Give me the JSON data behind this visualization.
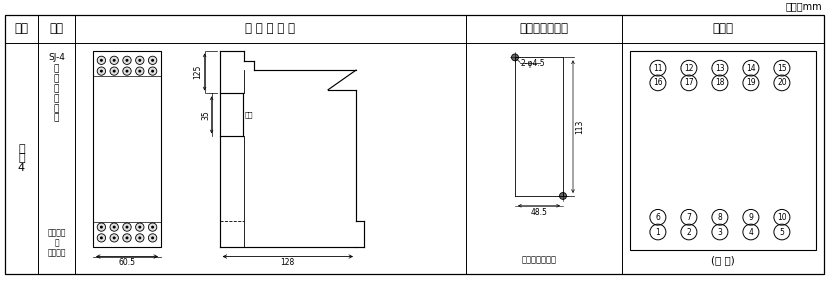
{
  "unit_label": "单位：mm",
  "col_headers": [
    "图号",
    "结构",
    "外 形 尺 寸 图",
    "安装开孔尺寸图",
    "端子图"
  ],
  "row_label": "附\n图\n4",
  "struct_line1": "SJ-4",
  "struct_line2": "凸出式",
  "struct_line3": "前接线",
  "struct_line4": "卡轨安装",
  "struct_line5": "或",
  "struct_line6": "螺钉安装",
  "dim_60_5": "60.5",
  "dim_128": "128",
  "dim_125": "125",
  "dim_35": "35",
  "dim_card": "卡槽",
  "dim_48_5": "48.5",
  "dim_113": "113",
  "hole_label": "2-φ4.5",
  "caption_hole": "螺钉安装开孔图",
  "caption_view": "(正 视)",
  "terminal_top_row1": [
    11,
    12,
    13,
    14,
    15
  ],
  "terminal_top_row2": [
    16,
    17,
    18,
    19,
    20
  ],
  "terminal_bot_row1": [
    6,
    7,
    8,
    9,
    10
  ],
  "terminal_bot_row2": [
    1,
    2,
    3,
    4,
    5
  ],
  "bg_color": "#ffffff",
  "line_color": "#000000",
  "text_color": "#000000",
  "font_size_header": 8.5,
  "font_size_body": 8,
  "font_size_small": 6,
  "font_size_dim": 5.5,
  "font_size_unit": 7
}
